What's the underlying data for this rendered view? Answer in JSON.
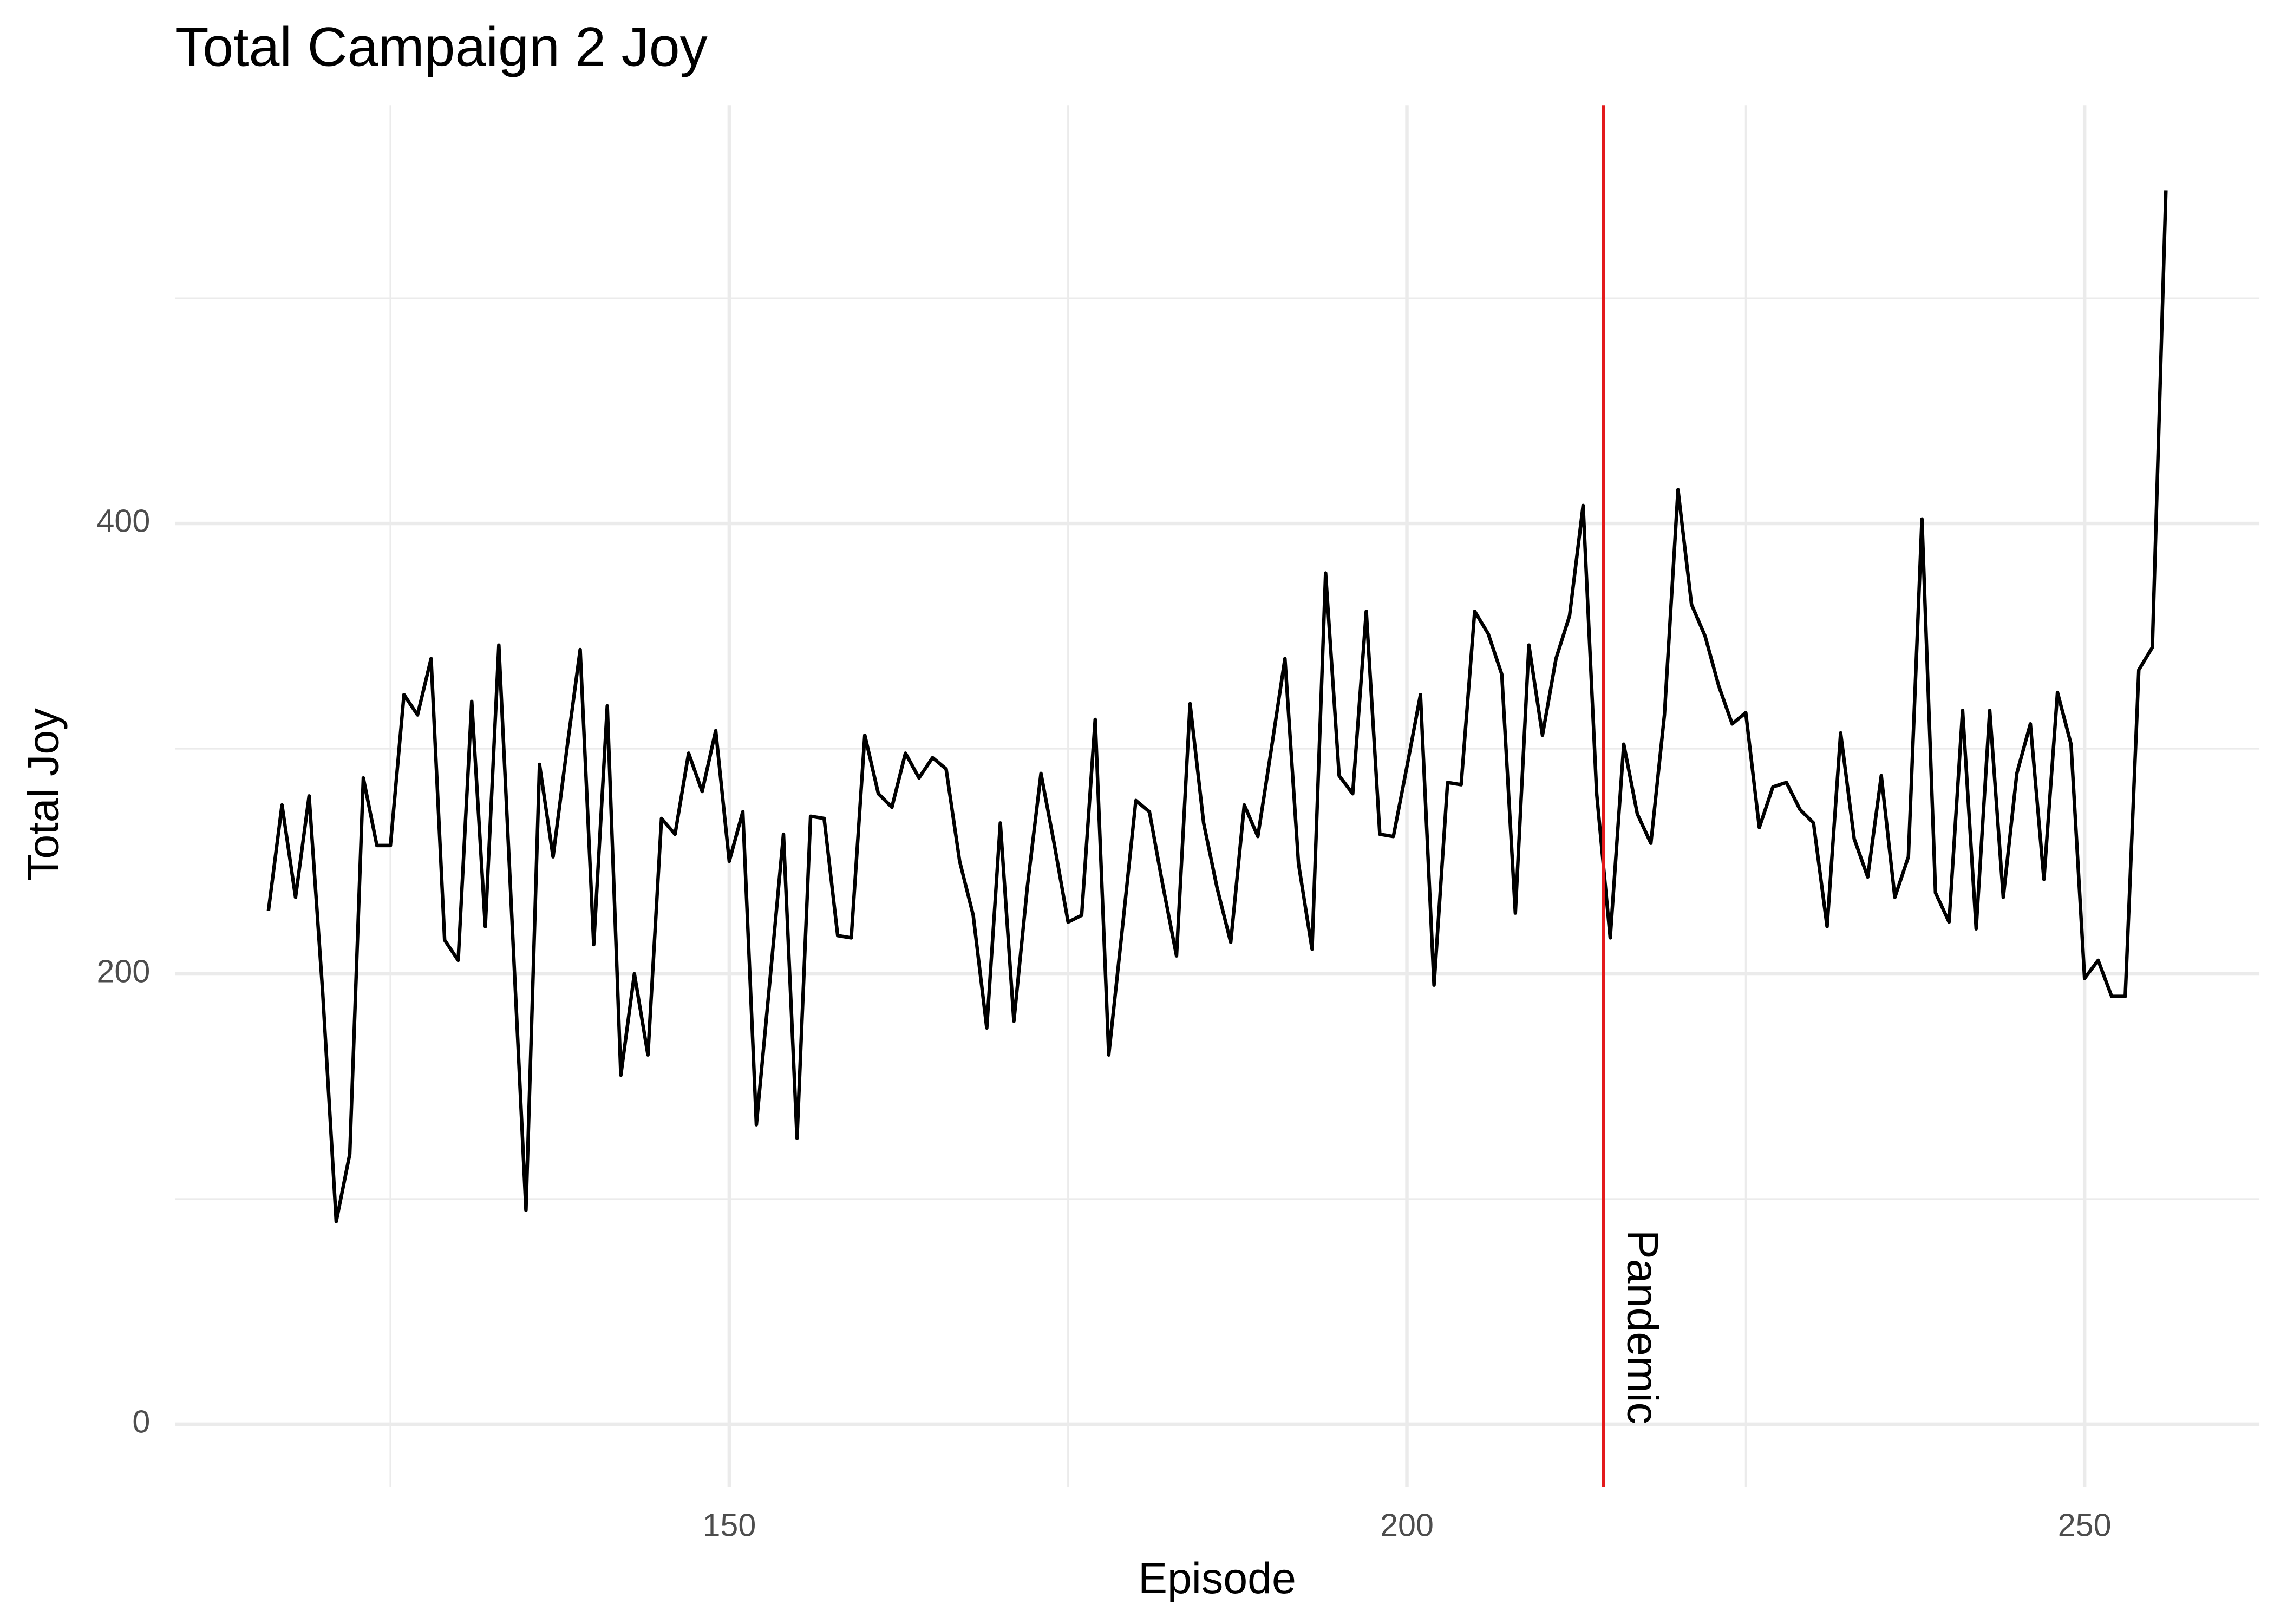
{
  "chart_data": {
    "type": "line",
    "title": "Total Campaign 2 Joy",
    "x_label": "Episode",
    "y_label": "Total Joy",
    "x": [
      116,
      117,
      118,
      119,
      120,
      121,
      122,
      123,
      124,
      125,
      126,
      127,
      128,
      129,
      130,
      131,
      132,
      133,
      134,
      135,
      136,
      137,
      138,
      139,
      140,
      141,
      142,
      143,
      144,
      145,
      146,
      147,
      148,
      149,
      150,
      151,
      152,
      153,
      154,
      155,
      156,
      157,
      158,
      159,
      160,
      161,
      162,
      163,
      164,
      165,
      166,
      167,
      168,
      169,
      170,
      171,
      172,
      173,
      174,
      175,
      176,
      177,
      178,
      179,
      180,
      181,
      182,
      183,
      184,
      185,
      186,
      187,
      188,
      189,
      190,
      191,
      192,
      193,
      194,
      195,
      196,
      197,
      198,
      199,
      200,
      201,
      202,
      203,
      204,
      205,
      206,
      207,
      208,
      209,
      210,
      211,
      212,
      213,
      214,
      215,
      216,
      217,
      218,
      219,
      220,
      221,
      222,
      223,
      224,
      225,
      226,
      227,
      228,
      229,
      230,
      231,
      232,
      233,
      234,
      235,
      236,
      237,
      238,
      239,
      240,
      241,
      242,
      243,
      244,
      245,
      246,
      247,
      248,
      249,
      250,
      251,
      252,
      253,
      254,
      255,
      256
    ],
    "values": [
      228,
      275,
      234,
      279,
      192,
      90,
      120,
      287,
      257,
      257,
      324,
      315,
      340,
      215,
      206,
      321,
      221,
      346,
      220,
      95,
      293,
      252,
      299,
      344,
      213,
      319,
      155,
      200,
      164,
      269,
      262,
      298,
      281,
      308,
      250,
      272,
      133,
      197,
      262,
      127,
      270,
      269,
      217,
      216,
      306,
      280,
      274,
      298,
      287,
      296,
      291,
      250,
      226,
      176,
      267,
      179,
      239,
      289,
      257,
      223,
      226,
      313,
      164,
      220,
      277,
      272,
      239,
      208,
      320,
      267,
      238,
      214,
      275,
      261,
      300,
      340,
      249,
      211,
      378,
      288,
      280,
      361,
      262,
      261,
      292,
      324,
      195,
      285,
      284,
      361,
      351,
      333,
      227,
      346,
      306,
      340,
      359,
      408,
      280,
      216,
      302,
      271,
      258,
      315,
      415,
      364,
      350,
      328,
      311,
      316,
      265,
      283,
      285,
      273,
      267,
      221,
      307,
      260,
      243,
      288,
      234,
      252,
      402,
      236,
      223,
      317,
      220,
      317,
      234,
      289,
      311,
      242,
      325,
      302,
      198,
      206,
      190,
      190,
      335,
      345,
      548
    ],
    "color": "#000000",
    "xlim": [
      109.1,
      262.9
    ],
    "ylim": [
      -27.8,
      585.8
    ],
    "xticks": [
      150,
      200,
      250
    ],
    "yticks": [
      0,
      200,
      400
    ],
    "x_minor_ticks": [
      125,
      175,
      225
    ],
    "y_minor_ticks": [
      100,
      300,
      500
    ],
    "grid": true,
    "annotation": {
      "text": "Pandemic",
      "x": 214.5,
      "color": "#e31a1c"
    }
  }
}
